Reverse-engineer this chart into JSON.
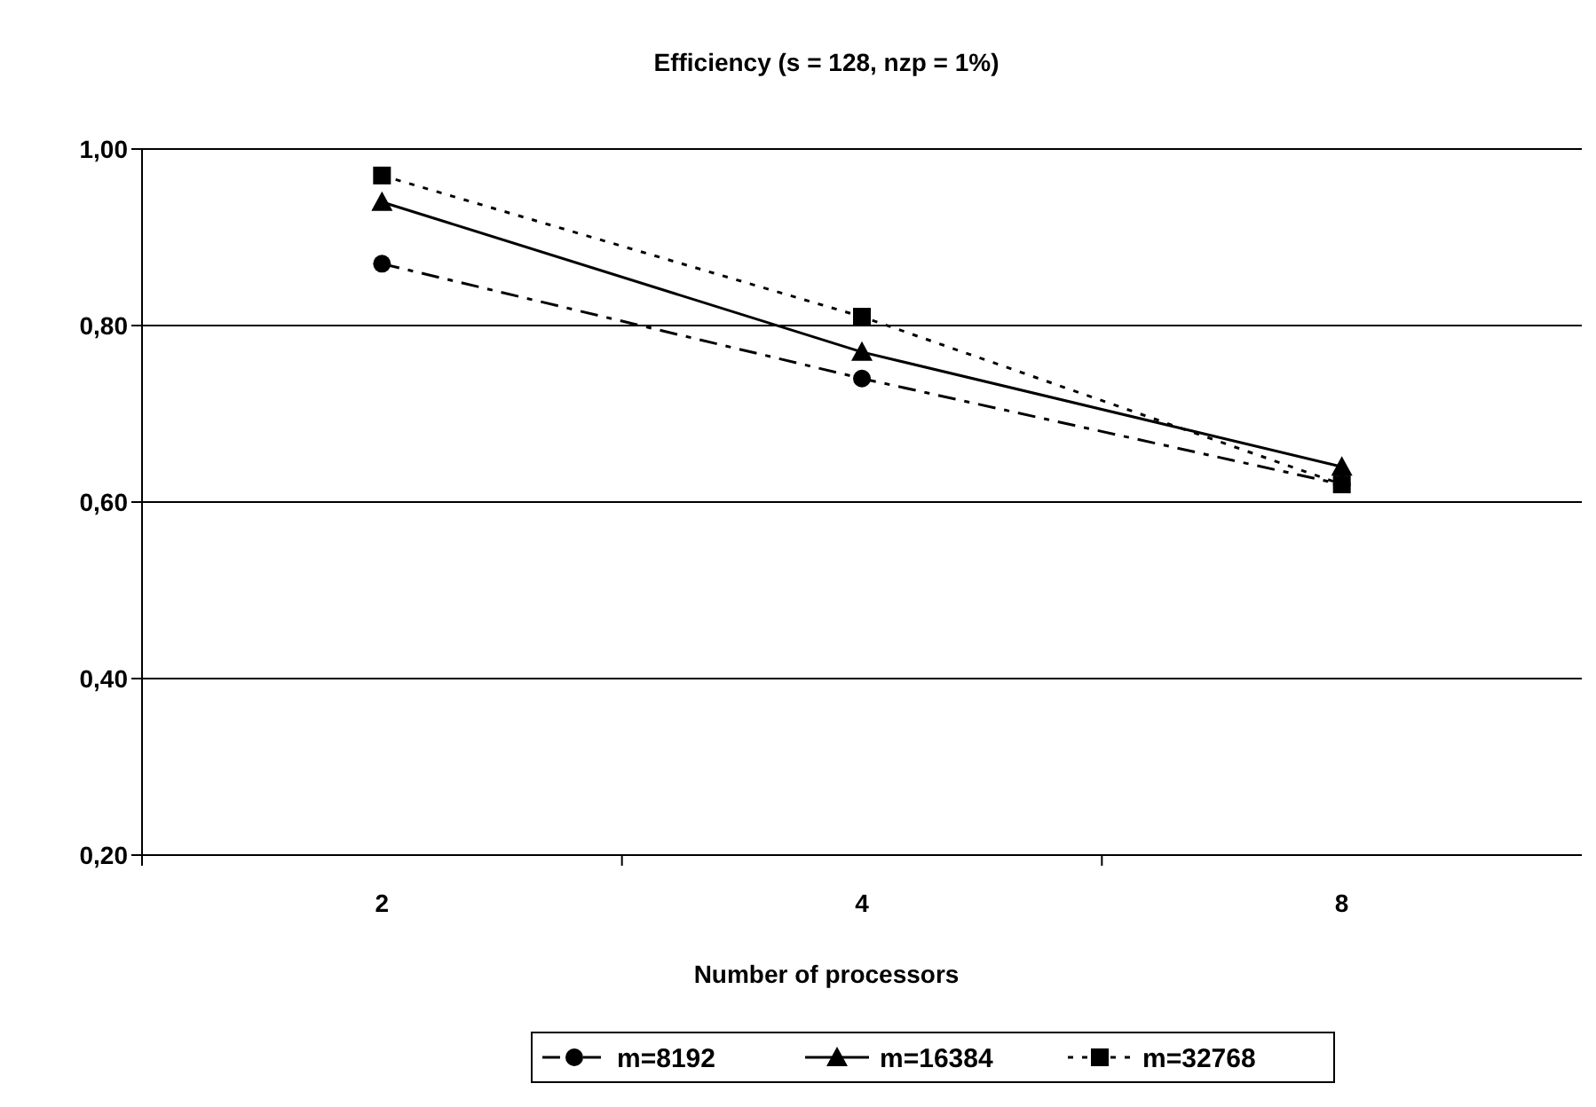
{
  "chart_data": {
    "type": "line",
    "title": "Efficiency (s = 128, nzp = 1%)",
    "xlabel": "Number of processors",
    "categories": [
      "2",
      "4",
      "8"
    ],
    "series": [
      {
        "name": "m=8192",
        "color": "#000000",
        "marker": "circle",
        "line_style": "dashdot",
        "values": [
          0.87,
          0.74,
          0.62
        ]
      },
      {
        "name": "m=16384",
        "color": "#000000",
        "marker": "triangle",
        "line_style": "solid",
        "values": [
          0.94,
          0.77,
          0.64
        ]
      },
      {
        "name": "m=32768",
        "color": "#000000",
        "marker": "square",
        "line_style": "dotted",
        "values": [
          0.97,
          0.81,
          0.62
        ]
      }
    ],
    "ylim": [
      0.2,
      1.0
    ],
    "yticks": [
      {
        "value": 0.2,
        "label": "0,20"
      },
      {
        "value": 0.4,
        "label": "0,40"
      },
      {
        "value": 0.6,
        "label": "0,60"
      },
      {
        "value": 0.8,
        "label": "0,80"
      },
      {
        "value": 1.0,
        "label": "1,00"
      }
    ],
    "grid": "y",
    "legend": "bottom"
  }
}
